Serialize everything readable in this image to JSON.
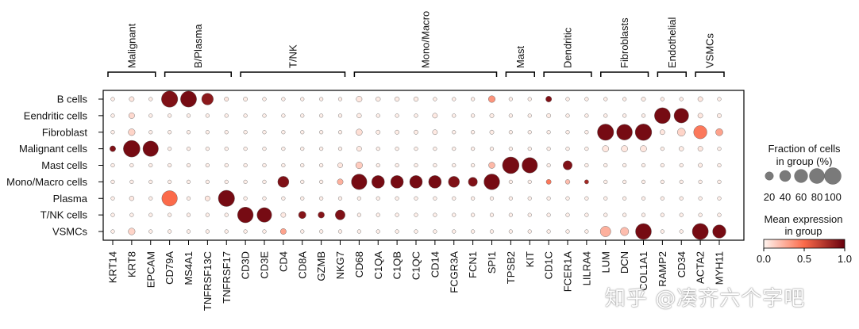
{
  "chart_data": {
    "type": "dotplot",
    "genes": [
      "KRT14",
      "KRT8",
      "EPCAM",
      "CD79A",
      "MS4A1",
      "TNFRSF13C",
      "TNFRSF17",
      "CD3D",
      "CD3E",
      "CD4",
      "CD8A",
      "GZMB",
      "NKG7",
      "CD68",
      "C1QA",
      "C1QB",
      "C1QC",
      "CD14",
      "FCGR3A",
      "FCN1",
      "SPI1",
      "TPSB2",
      "KIT",
      "CD1C",
      "FCER1A",
      "LILRA4",
      "LUM",
      "DCN",
      "COL1A1",
      "RAMP2",
      "CD34",
      "ACTA2",
      "MYH11"
    ],
    "cell_types": [
      "B cells",
      "Eendritic cells",
      "Fibroblast",
      "Malignant cells",
      "Mast cells",
      "Mono/Macro cells",
      "Plasma",
      "T/NK cells",
      "VSMCs"
    ],
    "gene_groups": [
      {
        "name": "Malignant",
        "start": 0,
        "end": 2
      },
      {
        "name": "B/Plasma",
        "start": 3,
        "end": 6
      },
      {
        "name": "T/NK",
        "start": 7,
        "end": 12
      },
      {
        "name": "Mono/Macro",
        "start": 13,
        "end": 20
      },
      {
        "name": "Mast",
        "start": 21,
        "end": 22
      },
      {
        "name": "Dendritic",
        "start": 23,
        "end": 25
      },
      {
        "name": "Fibroblasts",
        "start": 26,
        "end": 28
      },
      {
        "name": "Endothelial",
        "start": 29,
        "end": 30
      },
      {
        "name": "VSMCs",
        "start": 31,
        "end": 32
      }
    ],
    "points": [
      {
        "cell": "B cells",
        "gene": "KRT14",
        "fraction": 2,
        "expression": 0.03
      },
      {
        "cell": "B cells",
        "gene": "KRT8",
        "fraction": 5,
        "expression": 0.05
      },
      {
        "cell": "B cells",
        "gene": "EPCAM",
        "fraction": 2,
        "expression": 0.03
      },
      {
        "cell": "B cells",
        "gene": "CD79A",
        "fraction": 95,
        "expression": 0.92
      },
      {
        "cell": "B cells",
        "gene": "MS4A1",
        "fraction": 92,
        "expression": 0.95
      },
      {
        "cell": "B cells",
        "gene": "TNFRSF13C",
        "fraction": 45,
        "expression": 0.88
      },
      {
        "cell": "B cells",
        "gene": "TNFRSF17",
        "fraction": 3,
        "expression": 0.05
      },
      {
        "cell": "B cells",
        "gene": "CD3D",
        "fraction": 3,
        "expression": 0.03
      },
      {
        "cell": "B cells",
        "gene": "CD3E",
        "fraction": 2,
        "expression": 0.03
      },
      {
        "cell": "B cells",
        "gene": "CD4",
        "fraction": 2,
        "expression": 0.03
      },
      {
        "cell": "B cells",
        "gene": "CD8A",
        "fraction": 2,
        "expression": 0.03
      },
      {
        "cell": "B cells",
        "gene": "GZMB",
        "fraction": 2,
        "expression": 0.03
      },
      {
        "cell": "B cells",
        "gene": "NKG7",
        "fraction": 2,
        "expression": 0.03
      },
      {
        "cell": "B cells",
        "gene": "CD68",
        "fraction": 8,
        "expression": 0.05
      },
      {
        "cell": "B cells",
        "gene": "C1QA",
        "fraction": 4,
        "expression": 0.03
      },
      {
        "cell": "B cells",
        "gene": "C1QB",
        "fraction": 4,
        "expression": 0.03
      },
      {
        "cell": "B cells",
        "gene": "C1QC",
        "fraction": 4,
        "expression": 0.03
      },
      {
        "cell": "B cells",
        "gene": "CD14",
        "fraction": 2,
        "expression": 0.03
      },
      {
        "cell": "B cells",
        "gene": "FCGR3A",
        "fraction": 2,
        "expression": 0.03
      },
      {
        "cell": "B cells",
        "gene": "FCN1",
        "fraction": 2,
        "expression": 0.03
      },
      {
        "cell": "B cells",
        "gene": "SPI1",
        "fraction": 12,
        "expression": 0.35
      },
      {
        "cell": "B cells",
        "gene": "TPSB2",
        "fraction": 2,
        "expression": 0.03
      },
      {
        "cell": "B cells",
        "gene": "KIT",
        "fraction": 2,
        "expression": 0.03
      },
      {
        "cell": "B cells",
        "gene": "CD1C",
        "fraction": 8,
        "expression": 0.92
      },
      {
        "cell": "B cells",
        "gene": "FCER1A",
        "fraction": 2,
        "expression": 0.03
      },
      {
        "cell": "B cells",
        "gene": "LILRA4",
        "fraction": 2,
        "expression": 0.03
      },
      {
        "cell": "B cells",
        "gene": "LUM",
        "fraction": 2,
        "expression": 0.03
      },
      {
        "cell": "B cells",
        "gene": "DCN",
        "fraction": 2,
        "expression": 0.03
      },
      {
        "cell": "B cells",
        "gene": "COL1A1",
        "fraction": 3,
        "expression": 0.03
      },
      {
        "cell": "B cells",
        "gene": "RAMP2",
        "fraction": 2,
        "expression": 0.03
      },
      {
        "cell": "B cells",
        "gene": "CD34",
        "fraction": 2,
        "expression": 0.03
      },
      {
        "cell": "B cells",
        "gene": "ACTA2",
        "fraction": 5,
        "expression": 0.05
      },
      {
        "cell": "B cells",
        "gene": "MYH11",
        "fraction": 2,
        "expression": 0.03
      },
      {
        "cell": "Eendritic cells",
        "gene": "KRT8",
        "fraction": 8,
        "expression": 0.1
      },
      {
        "cell": "Eendritic cells",
        "gene": "CD68",
        "fraction": 4,
        "expression": 0.03
      },
      {
        "cell": "Eendritic cells",
        "gene": "CD14",
        "fraction": 5,
        "expression": 0.04
      },
      {
        "cell": "Eendritic cells",
        "gene": "SPI1",
        "fraction": 3,
        "expression": 0.03
      },
      {
        "cell": "Eendritic cells",
        "gene": "CD1C",
        "fraction": 3,
        "expression": 0.03
      },
      {
        "cell": "Eendritic cells",
        "gene": "RAMP2",
        "fraction": 90,
        "expression": 0.95
      },
      {
        "cell": "Eendritic cells",
        "gene": "CD34",
        "fraction": 75,
        "expression": 0.95
      },
      {
        "cell": "Eendritic cells",
        "gene": "ACTA2",
        "fraction": 5,
        "expression": 0.05
      },
      {
        "cell": "Eendritic cells",
        "gene": "MYH11",
        "fraction": 3,
        "expression": 0.03
      },
      {
        "cell": "Fibroblast",
        "gene": "KRT8",
        "fraction": 12,
        "expression": 0.12
      },
      {
        "cell": "Fibroblast",
        "gene": "CD68",
        "fraction": 10,
        "expression": 0.08
      },
      {
        "cell": "Fibroblast",
        "gene": "C1QA",
        "fraction": 3,
        "expression": 0.03
      },
      {
        "cell": "Fibroblast",
        "gene": "C1QB",
        "fraction": 3,
        "expression": 0.03
      },
      {
        "cell": "Fibroblast",
        "gene": "C1QC",
        "fraction": 3,
        "expression": 0.03
      },
      {
        "cell": "Fibroblast",
        "gene": "CD14",
        "fraction": 5,
        "expression": 0.04
      },
      {
        "cell": "Fibroblast",
        "gene": "SPI1",
        "fraction": 3,
        "expression": 0.03
      },
      {
        "cell": "Fibroblast",
        "gene": "LUM",
        "fraction": 95,
        "expression": 0.95
      },
      {
        "cell": "Fibroblast",
        "gene": "DCN",
        "fraction": 88,
        "expression": 0.95
      },
      {
        "cell": "Fibroblast",
        "gene": "COL1A1",
        "fraction": 98,
        "expression": 0.95
      },
      {
        "cell": "Fibroblast",
        "gene": "RAMP2",
        "fraction": 5,
        "expression": 0.05
      },
      {
        "cell": "Fibroblast",
        "gene": "CD34",
        "fraction": 18,
        "expression": 0.12
      },
      {
        "cell": "Fibroblast",
        "gene": "ACTA2",
        "fraction": 60,
        "expression": 0.45
      },
      {
        "cell": "Fibroblast",
        "gene": "MYH11",
        "fraction": 14,
        "expression": 0.3
      },
      {
        "cell": "Malignant cells",
        "gene": "KRT14",
        "fraction": 8,
        "expression": 0.92
      },
      {
        "cell": "Malignant cells",
        "gene": "KRT8",
        "fraction": 100,
        "expression": 0.95
      },
      {
        "cell": "Malignant cells",
        "gene": "EPCAM",
        "fraction": 85,
        "expression": 0.95
      },
      {
        "cell": "Malignant cells",
        "gene": "CD68",
        "fraction": 5,
        "expression": 0.04
      },
      {
        "cell": "Malignant cells",
        "gene": "LUM",
        "fraction": 10,
        "expression": 0.05
      },
      {
        "cell": "Malignant cells",
        "gene": "DCN",
        "fraction": 10,
        "expression": 0.05
      },
      {
        "cell": "Malignant cells",
        "gene": "COL1A1",
        "fraction": 10,
        "expression": 0.05
      },
      {
        "cell": "Malignant cells",
        "gene": "CD34",
        "fraction": 4,
        "expression": 0.03
      },
      {
        "cell": "Malignant cells",
        "gene": "ACTA2",
        "fraction": 5,
        "expression": 0.05
      },
      {
        "cell": "Mast cells",
        "gene": "CD68",
        "fraction": 12,
        "expression": 0.15
      },
      {
        "cell": "Mast cells",
        "gene": "NKG7",
        "fraction": 5,
        "expression": 0.05
      },
      {
        "cell": "Mast cells",
        "gene": "SPI1",
        "fraction": 10,
        "expression": 0.22
      },
      {
        "cell": "Mast cells",
        "gene": "TPSB2",
        "fraction": 100,
        "expression": 0.95
      },
      {
        "cell": "Mast cells",
        "gene": "KIT",
        "fraction": 85,
        "expression": 0.95
      },
      {
        "cell": "Mast cells",
        "gene": "FCER1A",
        "fraction": 25,
        "expression": 0.92
      },
      {
        "cell": "Mast cells",
        "gene": "ACTA2",
        "fraction": 3,
        "expression": 0.03
      },
      {
        "cell": "Mono/Macro cells",
        "gene": "CD4",
        "fraction": 40,
        "expression": 0.92
      },
      {
        "cell": "Mono/Macro cells",
        "gene": "NKG7",
        "fraction": 8,
        "expression": 0.25
      },
      {
        "cell": "Mono/Macro cells",
        "gene": "CD68",
        "fraction": 85,
        "expression": 0.95
      },
      {
        "cell": "Mono/Macro cells",
        "gene": "C1QA",
        "fraction": 55,
        "expression": 0.95
      },
      {
        "cell": "Mono/Macro cells",
        "gene": "C1QB",
        "fraction": 55,
        "expression": 0.95
      },
      {
        "cell": "Mono/Macro cells",
        "gene": "C1QC",
        "fraction": 55,
        "expression": 0.95
      },
      {
        "cell": "Mono/Macro cells",
        "gene": "CD14",
        "fraction": 55,
        "expression": 0.95
      },
      {
        "cell": "Mono/Macro cells",
        "gene": "FCGR3A",
        "fraction": 40,
        "expression": 0.92
      },
      {
        "cell": "Mono/Macro cells",
        "gene": "FCN1",
        "fraction": 25,
        "expression": 0.92
      },
      {
        "cell": "Mono/Macro cells",
        "gene": "SPI1",
        "fraction": 88,
        "expression": 0.95
      },
      {
        "cell": "Mono/Macro cells",
        "gene": "CD1C",
        "fraction": 5,
        "expression": 0.45
      },
      {
        "cell": "Mono/Macro cells",
        "gene": "FCER1A",
        "fraction": 4,
        "expression": 0.2
      },
      {
        "cell": "Mono/Macro cells",
        "gene": "LILRA4",
        "fraction": 3,
        "expression": 0.8
      },
      {
        "cell": "Plasma",
        "gene": "KRT8",
        "fraction": 4,
        "expression": 0.04
      },
      {
        "cell": "Plasma",
        "gene": "CD79A",
        "fraction": 85,
        "expression": 0.5
      },
      {
        "cell": "Plasma",
        "gene": "TNFRSF13C",
        "fraction": 5,
        "expression": 0.05
      },
      {
        "cell": "Plasma",
        "gene": "TNFRSF17",
        "fraction": 95,
        "expression": 0.95
      },
      {
        "cell": "T/NK cells",
        "gene": "CD3D",
        "fraction": 88,
        "expression": 0.95
      },
      {
        "cell": "T/NK cells",
        "gene": "CD3E",
        "fraction": 75,
        "expression": 0.95
      },
      {
        "cell": "T/NK cells",
        "gene": "CD4",
        "fraction": 5,
        "expression": 0.04
      },
      {
        "cell": "T/NK cells",
        "gene": "CD8A",
        "fraction": 15,
        "expression": 0.9
      },
      {
        "cell": "T/NK cells",
        "gene": "GZMB",
        "fraction": 10,
        "expression": 0.9
      },
      {
        "cell": "T/NK cells",
        "gene": "NKG7",
        "fraction": 30,
        "expression": 0.92
      },
      {
        "cell": "VSMCs",
        "gene": "KRT8",
        "fraction": 12,
        "expression": 0.12
      },
      {
        "cell": "VSMCs",
        "gene": "CD4",
        "fraction": 8,
        "expression": 0.3
      },
      {
        "cell": "VSMCs",
        "gene": "LUM",
        "fraction": 35,
        "expression": 0.25
      },
      {
        "cell": "VSMCs",
        "gene": "DCN",
        "fraction": 20,
        "expression": 0.2
      },
      {
        "cell": "VSMCs",
        "gene": "COL1A1",
        "fraction": 90,
        "expression": 0.95
      },
      {
        "cell": "VSMCs",
        "gene": "ACTA2",
        "fraction": 92,
        "expression": 0.95
      },
      {
        "cell": "VSMCs",
        "gene": "MYH11",
        "fraction": 60,
        "expression": 0.95
      }
    ],
    "default_point": {
      "fraction": 2,
      "expression": 0.02
    },
    "size_legend": {
      "title_line1": "Fraction of cells",
      "title_line2": "in group (%)",
      "values": [
        20,
        40,
        60,
        80,
        100
      ],
      "labels": [
        "20",
        "40",
        "60",
        "80",
        "100"
      ]
    },
    "color_legend": {
      "title_line1": "Mean expression",
      "title_line2": "in group",
      "min": 0.0,
      "max": 1.0,
      "ticks": [
        "0.0",
        "0.5",
        "1.0"
      ],
      "color_low": "#fff5f0",
      "color_mid": "#fb6a4a",
      "color_high": "#67000d"
    }
  },
  "watermark": "知乎 @凑齐六个字吧"
}
